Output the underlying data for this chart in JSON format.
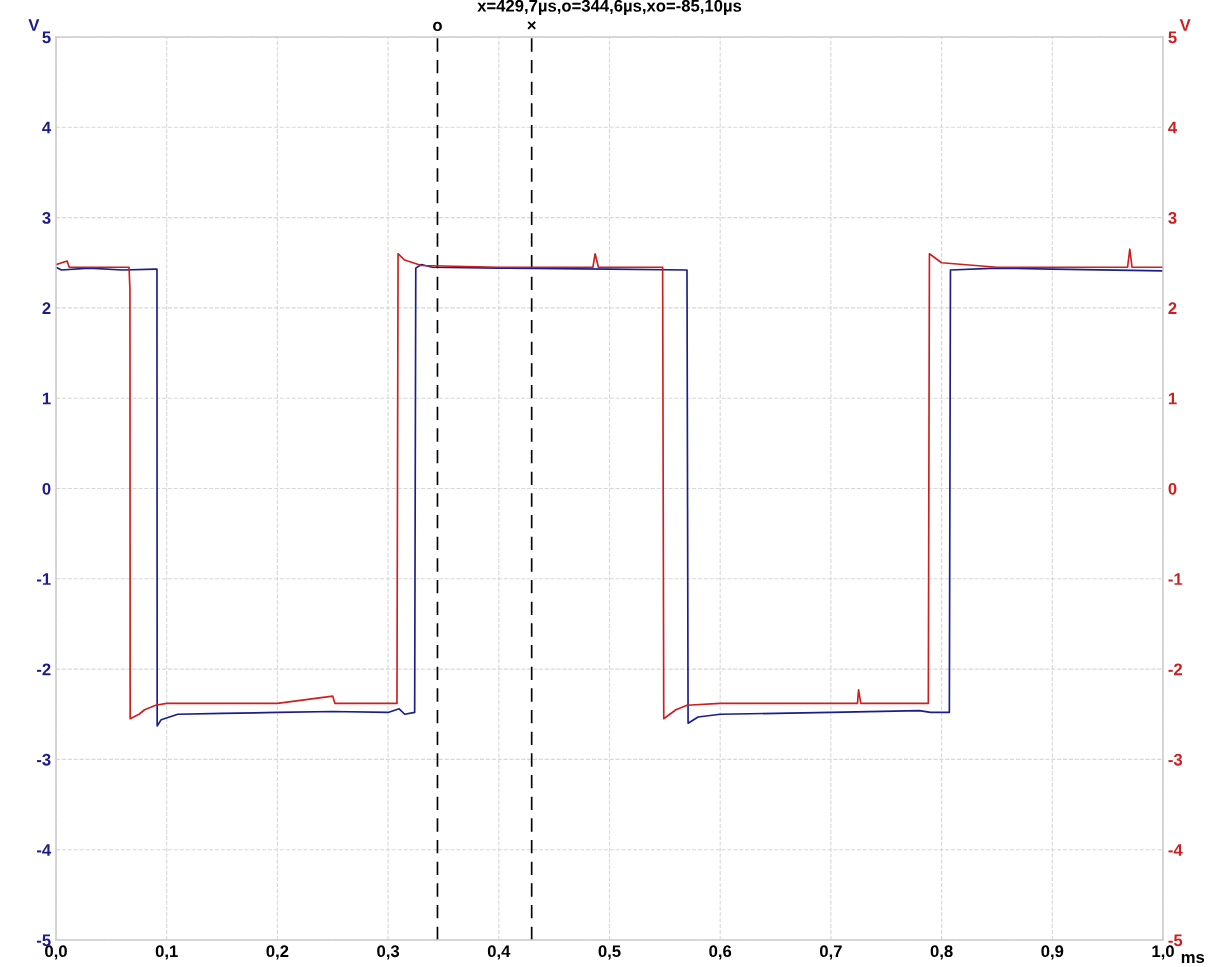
{
  "chart_data": {
    "type": "line",
    "title": "x=429,7µs,o=344,6µs,xo=-85,10µs",
    "xlabel": "ms",
    "ylabel": "V",
    "y2label": "V",
    "xlim": [
      0,
      1.0
    ],
    "ylim": [
      -5,
      5
    ],
    "y2lim": [
      -5,
      5
    ],
    "xticks": [
      {
        "value": 0,
        "label": "0,0"
      },
      {
        "value": 0.1,
        "label": "0,1"
      },
      {
        "value": 0.2,
        "label": "0,2"
      },
      {
        "value": 0.3,
        "label": "0,3"
      },
      {
        "value": 0.4,
        "label": "0,4"
      },
      {
        "value": 0.5,
        "label": "0,5"
      },
      {
        "value": 0.6,
        "label": "0,6"
      },
      {
        "value": 0.7,
        "label": "0,7"
      },
      {
        "value": 0.8,
        "label": "0,8"
      },
      {
        "value": 0.9,
        "label": "0,9"
      },
      {
        "value": 1.0,
        "label": "1,0"
      }
    ],
    "yticks": [
      -5,
      -4,
      -3,
      -2,
      -1,
      0,
      1,
      2,
      3,
      4,
      5
    ],
    "y2ticks": [
      -5,
      -4,
      -3,
      -2,
      -1,
      0,
      1,
      2,
      3,
      4,
      5
    ],
    "grid": true,
    "line_style": "solid",
    "marker": "none",
    "series": [
      {
        "color": "#1c1c8c",
        "x": [
          0.0,
          0.005,
          0.03,
          0.06,
          0.09,
          0.0912,
          0.0914,
          0.095,
          0.11,
          0.15,
          0.2,
          0.25,
          0.3,
          0.31,
          0.315,
          0.324,
          0.325,
          0.33,
          0.34,
          0.4,
          0.5,
          0.57,
          0.571,
          0.58,
          0.6,
          0.7,
          0.78,
          0.79,
          0.807,
          0.808,
          0.85,
          0.9,
          1.0
        ],
        "values": [
          2.45,
          2.42,
          2.44,
          2.42,
          2.43,
          2.43,
          -2.63,
          -2.56,
          -2.5,
          -2.49,
          -2.48,
          -2.47,
          -2.48,
          -2.44,
          -2.5,
          -2.48,
          2.44,
          2.48,
          2.45,
          2.44,
          2.43,
          2.42,
          -2.6,
          -2.53,
          -2.5,
          -2.48,
          -2.46,
          -2.48,
          -2.48,
          2.42,
          2.44,
          2.43,
          2.41
        ]
      },
      {
        "color": "#cc2020",
        "axis": "y2",
        "x": [
          0.0,
          0.01,
          0.012,
          0.066,
          0.0668,
          0.067,
          0.075,
          0.08,
          0.09,
          0.1,
          0.2,
          0.25,
          0.252,
          0.308,
          0.309,
          0.315,
          0.33,
          0.4,
          0.485,
          0.487,
          0.49,
          0.548,
          0.549,
          0.56,
          0.57,
          0.6,
          0.724,
          0.725,
          0.727,
          0.788,
          0.789,
          0.8,
          0.85,
          0.968,
          0.97,
          0.972,
          1.0
        ],
        "values": [
          2.48,
          2.52,
          2.45,
          2.45,
          2.2,
          -2.55,
          -2.5,
          -2.45,
          -2.4,
          -2.38,
          -2.38,
          -2.3,
          -2.38,
          -2.38,
          2.6,
          2.53,
          2.47,
          2.45,
          2.45,
          2.6,
          2.45,
          2.45,
          -2.55,
          -2.45,
          -2.4,
          -2.38,
          -2.38,
          -2.23,
          -2.38,
          -2.38,
          2.6,
          2.5,
          2.45,
          2.45,
          2.65,
          2.45,
          2.45
        ]
      }
    ],
    "ref_lines": [
      {
        "axis": "x",
        "value": 0.3446,
        "label": "o",
        "color": "#000000",
        "line_style": "dashed"
      },
      {
        "axis": "x",
        "value": 0.4297,
        "label": "×",
        "color": "#000000",
        "line_style": "dashed"
      }
    ]
  }
}
